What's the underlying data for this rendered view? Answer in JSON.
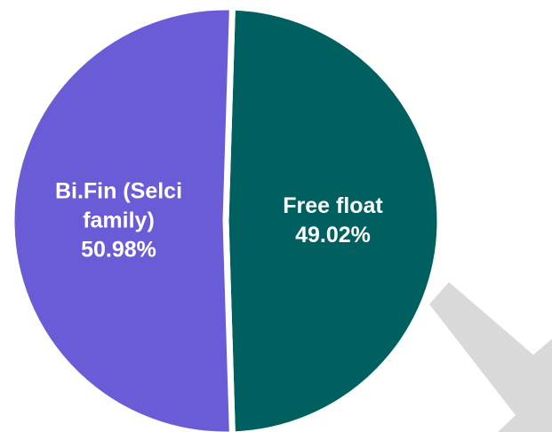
{
  "chart_data": {
    "type": "pie",
    "categories": [
      "Bi.Fin (Selci family)",
      "Free float"
    ],
    "values": [
      50.98,
      49.02
    ],
    "value_labels": [
      "50.98%",
      "49.02%"
    ],
    "colors": [
      "#6a5bd6",
      "#005f5f"
    ]
  }
}
